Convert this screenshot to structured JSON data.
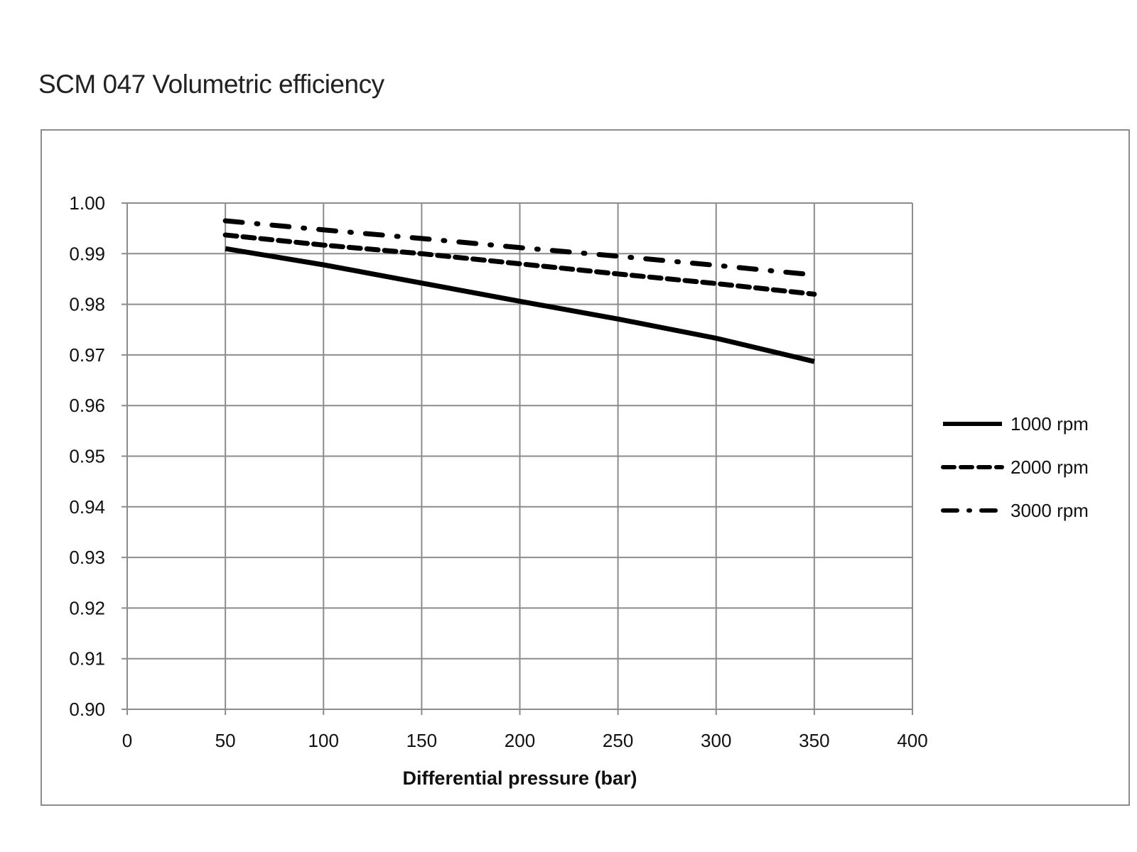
{
  "chart_data": {
    "type": "line",
    "title": "SCM 047 Volumetric efficiency",
    "xlabel": "Differential pressure (bar)",
    "ylabel": "",
    "xlim": [
      0,
      400
    ],
    "ylim": [
      0.9,
      1.0
    ],
    "xticks": [
      "0",
      "50",
      "100",
      "150",
      "200",
      "250",
      "300",
      "350",
      "400"
    ],
    "yticks": [
      "0.90",
      "0.91",
      "0.92",
      "0.93",
      "0.94",
      "0.95",
      "0.96",
      "0.97",
      "0.98",
      "0.99",
      "1.00"
    ],
    "grid": true,
    "legend_position": "right",
    "x": [
      50,
      100,
      150,
      200,
      250,
      300,
      350
    ],
    "series": [
      {
        "name": "1000 rpm",
        "style": "solid",
        "values": [
          0.991,
          0.9878,
          0.9842,
          0.9806,
          0.9771,
          0.9733,
          0.9687
        ]
      },
      {
        "name": "2000 rpm",
        "style": "dashed",
        "values": [
          0.9937,
          0.9917,
          0.99,
          0.988,
          0.986,
          0.9841,
          0.982
        ]
      },
      {
        "name": "3000 rpm",
        "style": "dashdot",
        "values": [
          0.9965,
          0.9947,
          0.993,
          0.9912,
          0.9895,
          0.9877,
          0.9858
        ]
      }
    ],
    "colors": {
      "line": "#000000",
      "grid": "#8c8c8c"
    }
  }
}
